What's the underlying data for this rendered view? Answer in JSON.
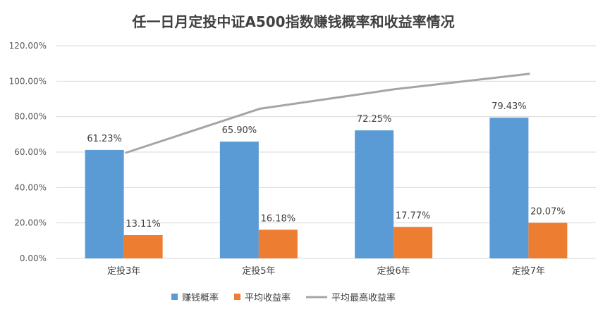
{
  "chart_data": {
    "type": "bar",
    "title": "任一日月定投中证A500指数赚钱概率和收益率情况",
    "categories": [
      "定投3年",
      "定投5年",
      "定投6年",
      "定投7年"
    ],
    "series": [
      {
        "name": "赚钱概率",
        "kind": "bar",
        "color": "#5b9bd5",
        "values": [
          61.23,
          65.9,
          72.25,
          79.43
        ],
        "labels": [
          "61.23%",
          "65.90%",
          "72.25%",
          "79.43%"
        ]
      },
      {
        "name": "平均收益率",
        "kind": "bar",
        "color": "#ed7d31",
        "values": [
          13.11,
          16.18,
          17.77,
          20.07
        ],
        "labels": [
          "13.11%",
          "16.18%",
          "17.77%",
          "20.07%"
        ]
      },
      {
        "name": "平均最高收益率",
        "kind": "line",
        "color": "#a5a5a5",
        "values": [
          59.5,
          84.5,
          95.5,
          104.2
        ]
      }
    ],
    "ylim": [
      0,
      120
    ],
    "yticks": [
      "0.00%",
      "20.00%",
      "40.00%",
      "60.00%",
      "80.00%",
      "100.00%",
      "120.00%"
    ],
    "ytick_values": [
      0,
      20,
      40,
      60,
      80,
      100,
      120
    ],
    "grid": true,
    "legend_position": "bottom"
  }
}
